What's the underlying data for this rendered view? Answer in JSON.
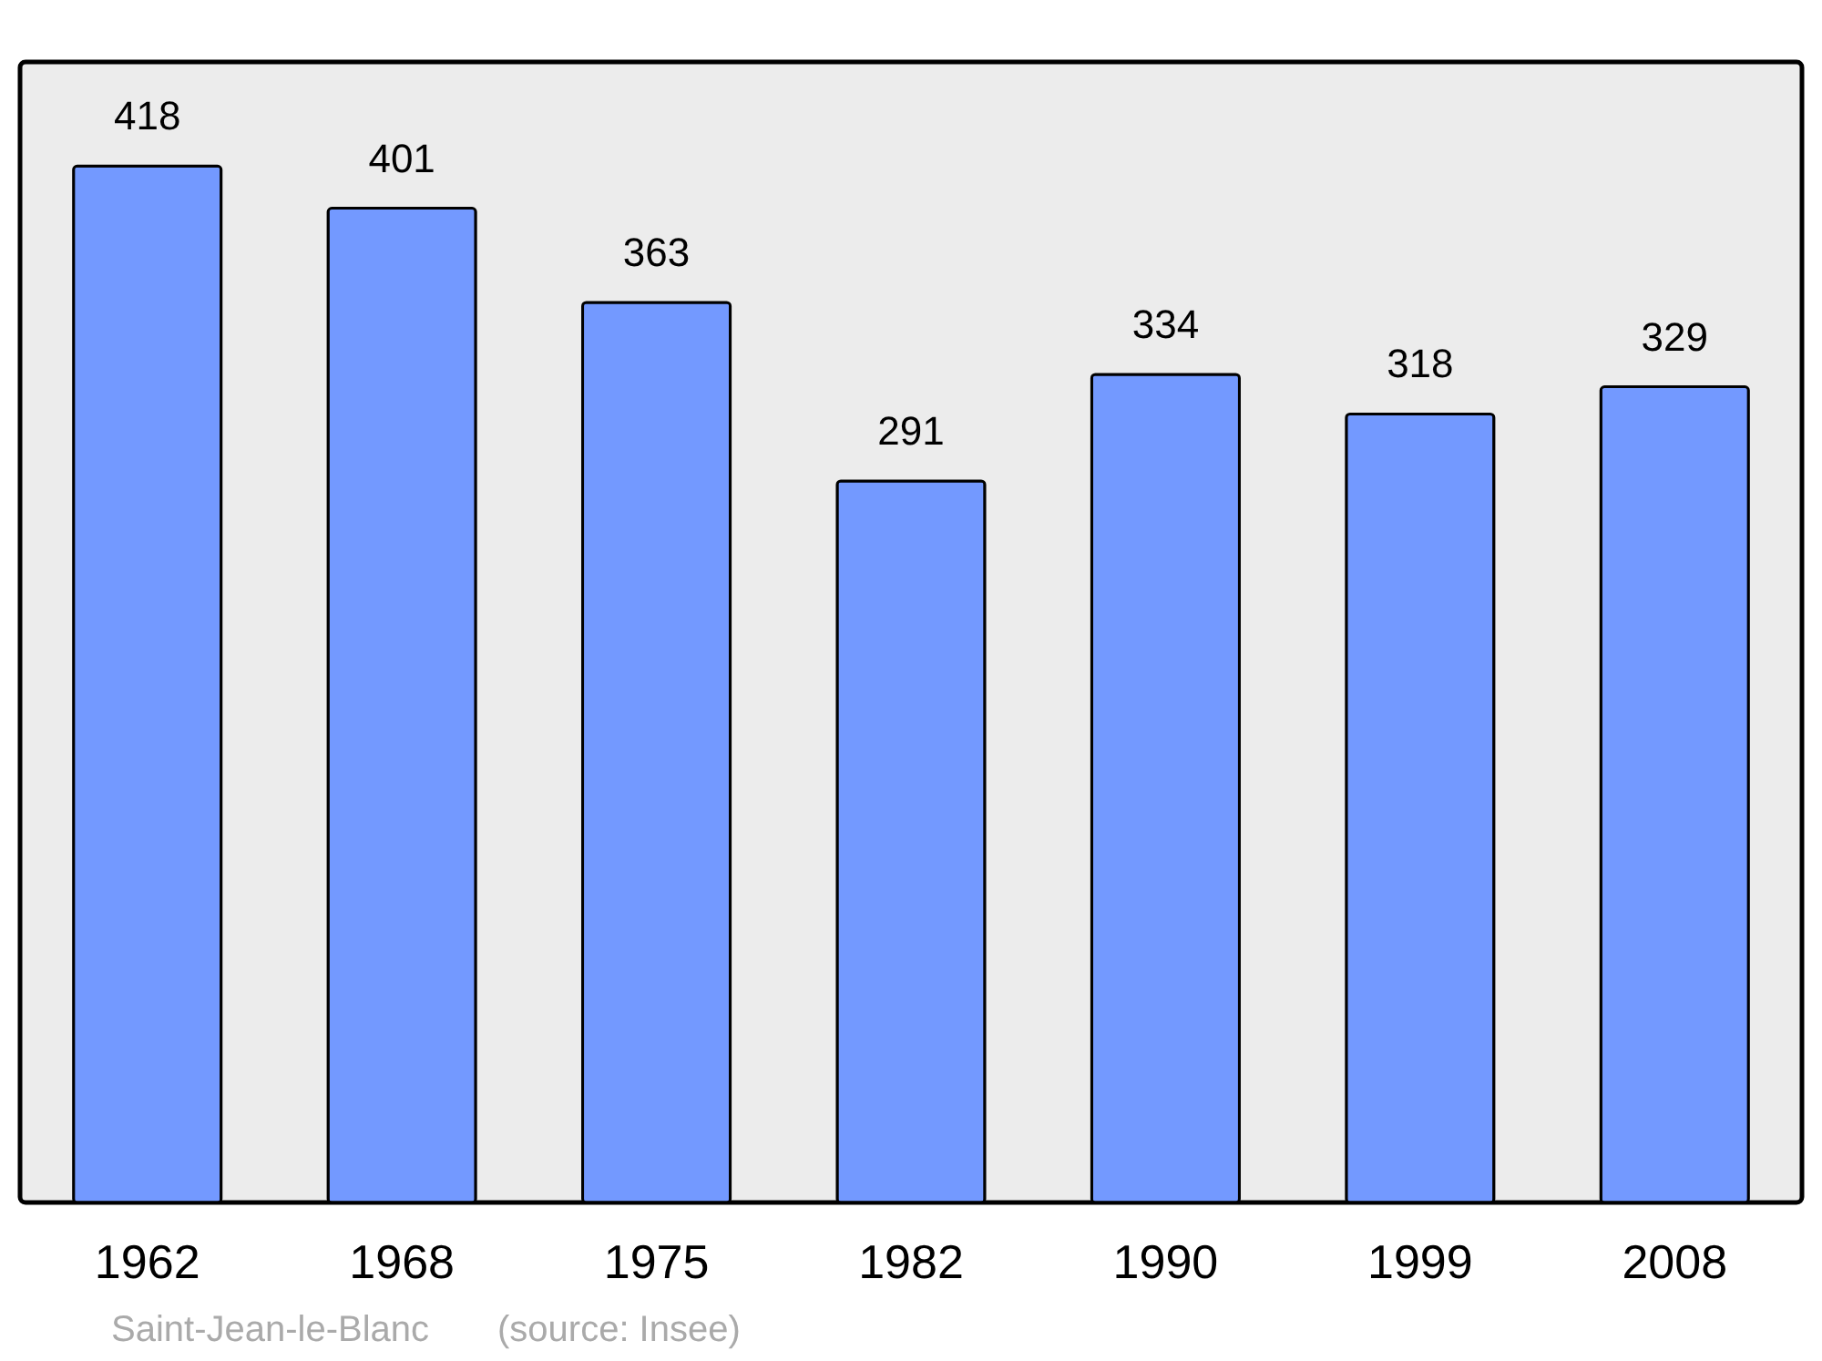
{
  "chart_data": {
    "type": "bar",
    "categories": [
      "1962",
      "1968",
      "1975",
      "1982",
      "1990",
      "1999",
      "2008"
    ],
    "values": [
      418,
      401,
      363,
      291,
      334,
      318,
      329
    ],
    "color": "#7399ff",
    "ylim": [
      0,
      460
    ],
    "data_labels": true,
    "grid": false,
    "annotations": [
      "Saint-Jean-le-Blanc",
      "(source: Insee)"
    ]
  }
}
